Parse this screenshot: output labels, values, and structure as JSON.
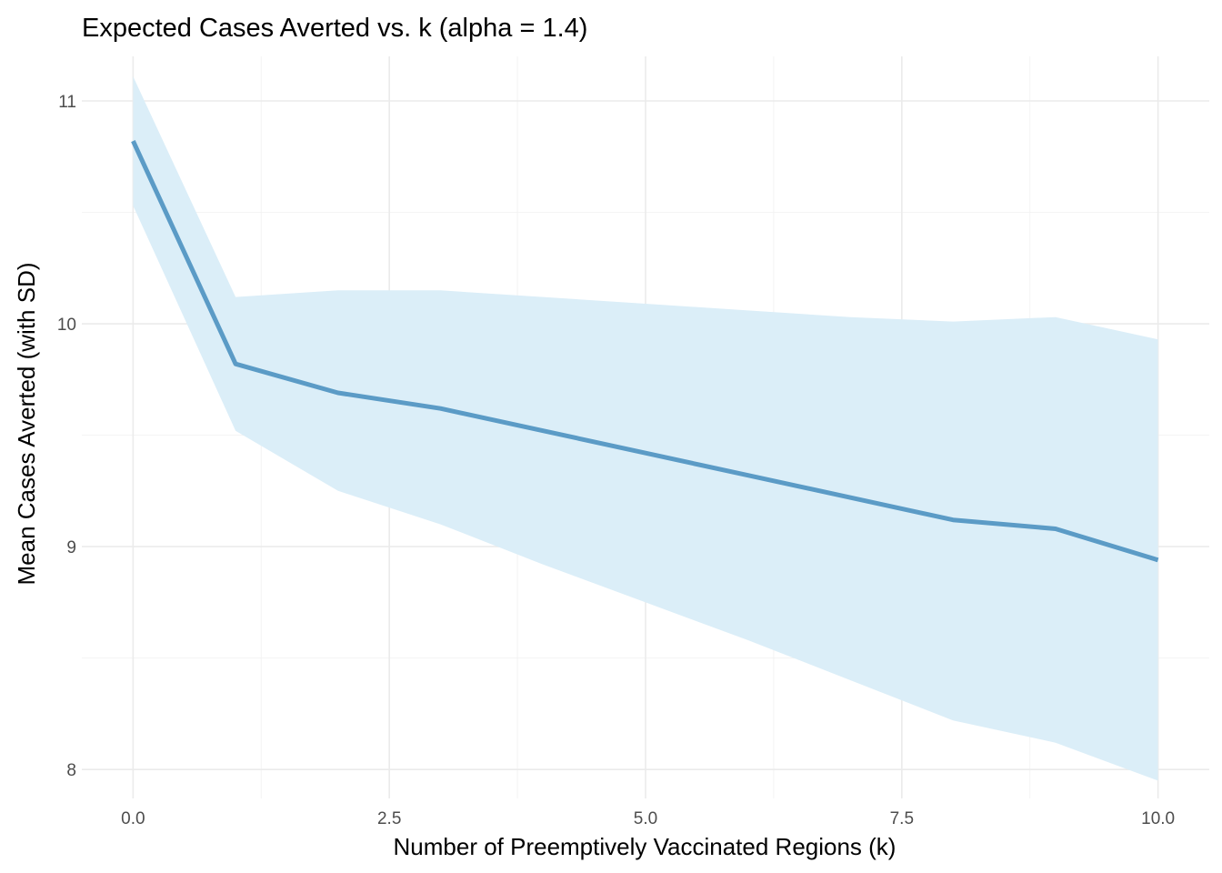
{
  "chart_data": {
    "type": "line",
    "title": "Expected Cases Averted vs. k (alpha = 1.4)",
    "xlabel": "Number of Preemptively Vaccinated Regions (k)",
    "ylabel": "Mean Cases Averted (with SD)",
    "xlim": [
      -0.5,
      10.5
    ],
    "ylim": [
      7.87,
      11.2
    ],
    "x_ticks": [
      0,
      2.5,
      5,
      7.5,
      10
    ],
    "x_tick_labels": [
      "0.0",
      "2.5",
      "5.0",
      "7.5",
      "10.0"
    ],
    "y_ticks": [
      8,
      9,
      10,
      11
    ],
    "y_tick_labels": [
      "8",
      "9",
      "10",
      "11"
    ],
    "x_minor_ticks": [
      1.25,
      3.75,
      6.25,
      8.75
    ],
    "y_minor_ticks": [
      8.5,
      9.5,
      10.5
    ],
    "grid": true,
    "legend": "none",
    "series": [
      {
        "x": [
          0,
          1,
          2,
          3,
          4,
          5,
          6,
          7,
          8,
          9,
          10
        ],
        "mean": [
          10.82,
          9.82,
          9.69,
          9.62,
          9.52,
          9.42,
          9.32,
          9.22,
          9.12,
          9.08,
          8.94
        ],
        "upper": [
          11.11,
          10.12,
          10.15,
          10.15,
          10.12,
          10.09,
          10.06,
          10.03,
          10.01,
          10.03,
          9.93
        ],
        "lower": [
          10.53,
          9.52,
          9.25,
          9.1,
          8.92,
          8.75,
          8.58,
          8.4,
          8.22,
          8.12,
          7.95
        ]
      }
    ],
    "colors": {
      "line": "#5b9bc6",
      "band": "#dbeef8"
    }
  }
}
